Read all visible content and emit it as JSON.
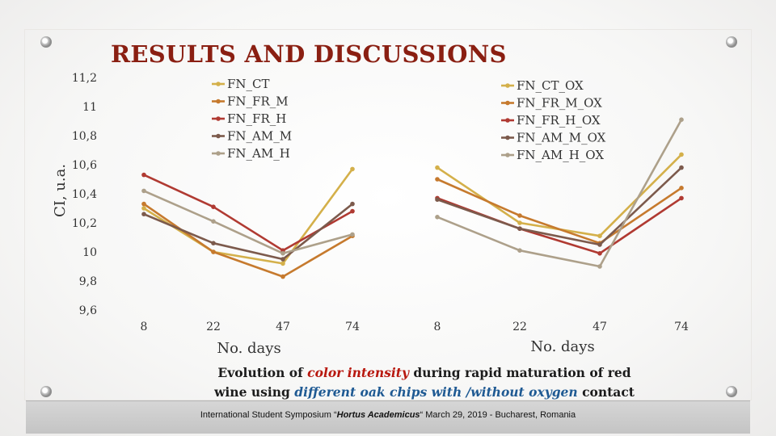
{
  "slide": {
    "title": "RESULTS AND DISCUSSIONS",
    "caption": {
      "part1": "Evolution of ",
      "highlight1": "color intensity",
      "part2": " during rapid maturation of red wine using ",
      "highlight2": "different oak chips with /without oxygen",
      "part3": " contact"
    },
    "footer": {
      "part1": "International Student Symposium  “",
      "event": "Hortus Academicus",
      "part2": "“  March 29, 2019 - Bucharest, Romania"
    }
  },
  "chart_data": [
    {
      "type": "line",
      "ylabel": "CI, u.a.",
      "xlabel": "No. days",
      "x": [
        8,
        22,
        47,
        74
      ],
      "ylim": [
        9.6,
        11.2
      ],
      "yticks": [
        "9,6",
        "9,8",
        "10",
        "10,2",
        "10,4",
        "10,6",
        "10,8",
        "11",
        "11,2"
      ],
      "grid": false,
      "legend_position": "top",
      "series": [
        {
          "name": "FN_CT",
          "color": "#d4b04a",
          "values": [
            10.3,
            10.0,
            9.92,
            10.57
          ]
        },
        {
          "name": "FN_FR_M",
          "color": "#c67a2e",
          "values": [
            10.33,
            10.0,
            9.83,
            10.11
          ]
        },
        {
          "name": "FN_FR_H",
          "color": "#b03a32",
          "values": [
            10.53,
            10.31,
            10.01,
            10.28
          ]
        },
        {
          "name": "FN_AM_M",
          "color": "#7c5a4c",
          "values": [
            10.26,
            10.06,
            9.95,
            10.33
          ]
        },
        {
          "name": "FN_AM_H",
          "color": "#ada08a",
          "values": [
            10.42,
            10.21,
            9.99,
            10.12
          ]
        }
      ]
    },
    {
      "type": "line",
      "xlabel": "No. days",
      "x": [
        8,
        22,
        47,
        74
      ],
      "ylim": [
        9.6,
        11.2
      ],
      "grid": false,
      "legend_position": "top-right",
      "series": [
        {
          "name": "FN_CT_OX",
          "color": "#d4b04a",
          "values": [
            10.58,
            10.2,
            10.11,
            10.67
          ]
        },
        {
          "name": "FN_FR_M_OX",
          "color": "#c67a2e",
          "values": [
            10.5,
            10.25,
            10.06,
            10.44
          ]
        },
        {
          "name": "FN_FR_H_OX",
          "color": "#b03a32",
          "values": [
            10.37,
            10.16,
            9.99,
            10.37
          ]
        },
        {
          "name": "FN_AM_M_OX",
          "color": "#7c5a4c",
          "values": [
            10.36,
            10.16,
            10.05,
            10.58
          ]
        },
        {
          "name": "FN_AM_H_OX",
          "color": "#ada08a",
          "values": [
            10.24,
            10.01,
            9.9,
            10.91
          ]
        }
      ]
    }
  ]
}
